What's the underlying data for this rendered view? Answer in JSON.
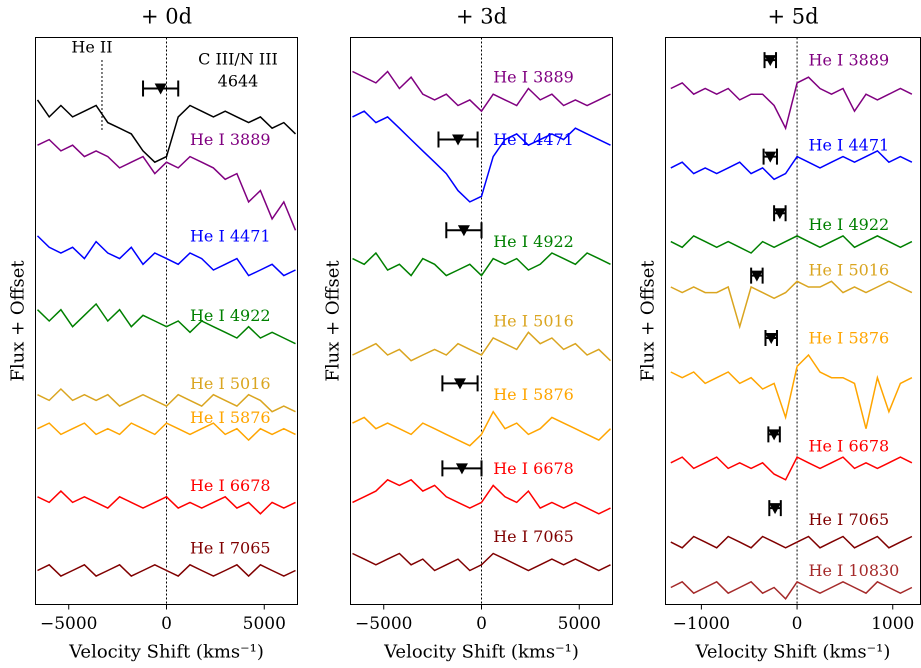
{
  "chart_data": [
    {
      "type": "line",
      "title": "+ 0d",
      "xlabel": "Velocity Shift (kms⁻¹)",
      "ylabel": "Flux + Offset",
      "xlim": [
        -6700,
        6700
      ],
      "ylim": [
        0,
        100
      ],
      "xticks": [
        {
          "value": -5000,
          "label": "−5000"
        },
        0,
        5000
      ],
      "vline": 0,
      "annotations": [
        {
          "text": "He II",
          "x": -3300
        },
        {
          "text": "C III/N III"
        },
        {
          "text": "4644"
        }
      ],
      "x": [
        -6600,
        -6000,
        -5400,
        -4800,
        -4200,
        -3600,
        -3000,
        -2400,
        -1800,
        -1200,
        -600,
        0,
        600,
        1200,
        1800,
        2400,
        3000,
        3600,
        4200,
        4800,
        5400,
        6000,
        6600
      ],
      "series": [
        {
          "color": "#000000",
          "values": [
            89,
            86,
            88,
            86,
            87,
            88,
            85,
            84,
            83,
            80,
            78,
            79,
            86,
            88,
            87,
            86,
            87,
            86,
            85,
            86,
            84,
            85,
            83
          ]
        },
        {
          "name": "He I 3889",
          "color": "#800080",
          "values": [
            81,
            82,
            80,
            81,
            79,
            80,
            79,
            77,
            78,
            79,
            76,
            78,
            77,
            79,
            78,
            77,
            75,
            76,
            71,
            73,
            68,
            71,
            66
          ]
        },
        {
          "name": "He I 4471",
          "color": "#0000ff",
          "values": [
            65,
            63,
            62,
            63,
            61,
            64,
            62,
            61,
            63,
            60,
            62,
            61,
            60,
            62,
            61,
            59,
            60,
            61,
            58,
            59,
            60,
            58,
            59
          ]
        },
        {
          "name": "He I 4922",
          "color": "#008000",
          "values": [
            52,
            50,
            52,
            49,
            51,
            53,
            50,
            52,
            49,
            51,
            50,
            49,
            50,
            48,
            50,
            49,
            48,
            47,
            49,
            47,
            48,
            47,
            46
          ]
        },
        {
          "name": "He I 5016",
          "color": "#daa520",
          "values": [
            37,
            36,
            38,
            36,
            37,
            36,
            37,
            35,
            36,
            37,
            36,
            35,
            37,
            36,
            35,
            37,
            36,
            35,
            37,
            36,
            34,
            35,
            34
          ]
        },
        {
          "name": "He I 5876",
          "color": "#ffa500",
          "values": [
            31,
            32,
            30,
            31,
            32,
            30,
            31,
            30,
            32,
            31,
            30,
            32,
            31,
            30,
            31,
            32,
            30,
            31,
            29,
            31,
            30,
            31,
            30
          ]
        },
        {
          "name": "He I 6678",
          "color": "#ff0000",
          "values": [
            19,
            18,
            20,
            18,
            19,
            18,
            17,
            19,
            18,
            17,
            18,
            19,
            17,
            18,
            17,
            18,
            19,
            17,
            18,
            16,
            18,
            17,
            18
          ]
        },
        {
          "name": "He I 7065",
          "color": "#800000",
          "values": [
            6,
            7,
            5,
            6,
            7,
            5,
            6,
            7,
            5,
            6,
            7,
            6,
            5,
            7,
            6,
            5,
            6,
            7,
            5,
            7,
            6,
            5,
            6
          ]
        }
      ],
      "markers": [
        {
          "x": -300,
          "xerr": 900,
          "y": 91
        }
      ]
    },
    {
      "type": "line",
      "title": "+ 3d",
      "xlabel": "Velocity Shift (kms⁻¹)",
      "ylabel": "Flux + Offset",
      "xlim": [
        -6700,
        6700
      ],
      "ylim": [
        0,
        100
      ],
      "xticks": [
        {
          "value": -5000,
          "label": "−5000"
        },
        0,
        5000
      ],
      "vline": 0,
      "x": [
        -6600,
        -6000,
        -5400,
        -4800,
        -4200,
        -3600,
        -3000,
        -2400,
        -1800,
        -1200,
        -600,
        0,
        600,
        1200,
        1800,
        2400,
        3000,
        3600,
        4200,
        4800,
        5400,
        6000,
        6600
      ],
      "series": [
        {
          "name": "He I 3889",
          "color": "#800080",
          "values": [
            94,
            93,
            92,
            94,
            91,
            93,
            90,
            89,
            90,
            88,
            89,
            87,
            90,
            89,
            88,
            91,
            89,
            90,
            88,
            89,
            88,
            89,
            90
          ]
        },
        {
          "name": "He I 4471",
          "color": "#0000ff",
          "values": [
            86,
            87,
            85,
            86,
            84,
            82,
            80,
            78,
            76,
            73,
            71,
            72,
            79,
            82,
            83,
            81,
            82,
            83,
            82,
            84,
            83,
            82,
            81
          ]
        },
        {
          "name": "He I 4922",
          "color": "#008000",
          "values": [
            61,
            60,
            62,
            59,
            60,
            58,
            61,
            60,
            58,
            59,
            60,
            58,
            61,
            60,
            61,
            59,
            60,
            62,
            61,
            60,
            62,
            61,
            60
          ]
        },
        {
          "name": "He I 5016",
          "color": "#daa520",
          "values": [
            44,
            45,
            46,
            44,
            45,
            43,
            44,
            45,
            44,
            46,
            45,
            44,
            47,
            46,
            45,
            48,
            46,
            47,
            45,
            46,
            44,
            45,
            43
          ]
        },
        {
          "name": "He I 5876",
          "color": "#ffa500",
          "values": [
            32,
            33,
            31,
            32,
            31,
            30,
            32,
            31,
            30,
            29,
            28,
            30,
            34,
            31,
            32,
            30,
            31,
            33,
            32,
            31,
            30,
            29,
            31
          ]
        },
        {
          "name": "He I 6678",
          "color": "#ff0000",
          "values": [
            18,
            19,
            20,
            22,
            21,
            22,
            20,
            21,
            19,
            18,
            17,
            18,
            21,
            19,
            18,
            20,
            17,
            18,
            17,
            18,
            17,
            16,
            17
          ]
        },
        {
          "name": "He I 7065",
          "color": "#800000",
          "values": [
            9,
            8,
            7,
            8,
            9,
            7,
            8,
            6,
            7,
            8,
            6,
            7,
            9,
            8,
            7,
            6,
            7,
            8,
            7,
            8,
            7,
            6,
            7
          ]
        }
      ],
      "markers": [
        {
          "x": -1200,
          "xerr": 1000,
          "y": 82
        },
        {
          "x": -900,
          "xerr": 900,
          "y": 66
        },
        {
          "x": -1100,
          "xerr": 900,
          "y": 39
        },
        {
          "x": -1000,
          "xerr": 1000,
          "y": 24
        }
      ]
    },
    {
      "type": "line",
      "title": "+ 5d",
      "xlabel": "Velocity Shift (kms⁻¹)",
      "ylabel": "Flux + Offset",
      "xlim": [
        -1375,
        1290
      ],
      "ylim": [
        0,
        100
      ],
      "xticks": [
        {
          "value": -1000,
          "label": "−1000"
        },
        0,
        1000
      ],
      "vline": 0,
      "x": [
        -1320,
        -1200,
        -1080,
        -960,
        -840,
        -720,
        -600,
        -480,
        -360,
        -240,
        -120,
        0,
        120,
        240,
        360,
        480,
        600,
        720,
        840,
        960,
        1080,
        1200
      ],
      "series": [
        {
          "name": "He I 3889",
          "color": "#800080",
          "values": [
            91,
            92,
            90,
            91,
            90,
            91,
            89,
            90,
            90,
            88,
            84,
            92,
            93,
            91,
            90,
            91,
            87,
            90,
            89,
            90,
            91,
            90
          ]
        },
        {
          "name": "He I 4471",
          "color": "#0000ff",
          "values": [
            77,
            78,
            76,
            77,
            76,
            77,
            78,
            76,
            77,
            75,
            76,
            79,
            78,
            77,
            78,
            79,
            78,
            79,
            80,
            78,
            79,
            78
          ]
        },
        {
          "name": "He I 4922",
          "color": "#008000",
          "values": [
            64,
            63,
            65,
            64,
            63,
            64,
            63,
            62,
            64,
            63,
            64,
            65,
            64,
            63,
            64,
            65,
            63,
            64,
            65,
            64,
            63,
            64
          ]
        },
        {
          "name": "He I 5016",
          "color": "#daa520",
          "values": [
            56,
            55,
            56,
            55,
            55,
            56,
            49,
            56,
            55,
            54,
            55,
            57,
            56,
            56,
            57,
            55,
            56,
            55,
            56,
            57,
            56,
            55
          ]
        },
        {
          "name": "He I 5876",
          "color": "#ffa500",
          "values": [
            41,
            40,
            41,
            39,
            40,
            41,
            39,
            40,
            38,
            39,
            33,
            42,
            44,
            41,
            40,
            40,
            39,
            31,
            40,
            34,
            39,
            40
          ]
        },
        {
          "name": "He I 6678",
          "color": "#ff0000",
          "values": [
            25,
            26,
            24,
            25,
            26,
            24,
            25,
            24,
            25,
            23,
            22,
            26,
            25,
            24,
            25,
            26,
            24,
            25,
            24,
            25,
            26,
            25
          ]
        },
        {
          "name": "He I 7065",
          "color": "#800000",
          "values": [
            11,
            10,
            12,
            11,
            10,
            12,
            11,
            10,
            12,
            11,
            10,
            11,
            12,
            10,
            11,
            12,
            10,
            11,
            12,
            10,
            11,
            12
          ]
        },
        {
          "name": "He I 10830",
          "color": "#a52a2a",
          "values": [
            3,
            4,
            2,
            3,
            4,
            2,
            3,
            4,
            2,
            3,
            1,
            4,
            3,
            2,
            3,
            4,
            3,
            2,
            4,
            3,
            2,
            3
          ]
        }
      ],
      "markers": [
        {
          "x": -280,
          "xerr": 60,
          "y": 96
        },
        {
          "x": -280,
          "xerr": 70,
          "y": 79
        },
        {
          "x": -180,
          "xerr": 60,
          "y": 69
        },
        {
          "x": -420,
          "xerr": 60,
          "y": 58
        },
        {
          "x": -270,
          "xerr": 60,
          "y": 47
        },
        {
          "x": -240,
          "xerr": 60,
          "y": 30
        },
        {
          "x": -230,
          "xerr": 60,
          "y": 17
        }
      ]
    }
  ]
}
